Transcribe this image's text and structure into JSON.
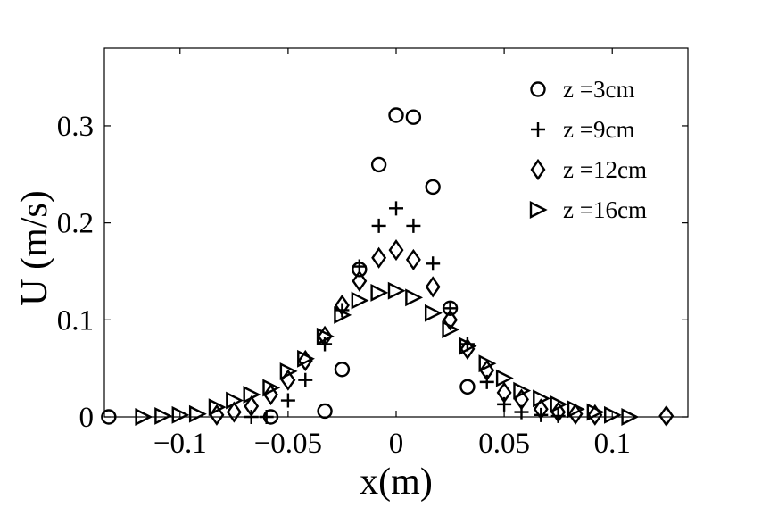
{
  "chart_data": {
    "type": "scatter",
    "title": "",
    "xlabel": "x(m)",
    "ylabel": "U (m/s)",
    "xlim": [
      -0.135,
      0.135
    ],
    "ylim": [
      0,
      0.38
    ],
    "grid": false,
    "legend_position": "top-right",
    "x_ticks": [
      {
        "value": -0.1,
        "label": "−0.1"
      },
      {
        "value": -0.05,
        "label": "−0.05"
      },
      {
        "value": 0,
        "label": "0"
      },
      {
        "value": 0.05,
        "label": "0.05"
      },
      {
        "value": 0.1,
        "label": "0.1"
      }
    ],
    "y_ticks": [
      {
        "value": 0,
        "label": "0"
      },
      {
        "value": 0.1,
        "label": "0.1"
      },
      {
        "value": 0.2,
        "label": "0.2"
      },
      {
        "value": 0.3,
        "label": "0.3"
      }
    ],
    "series": [
      {
        "name": "z =3cm",
        "marker": "circle",
        "points": [
          [
            -0.133,
            0.0
          ],
          [
            -0.058,
            0.0
          ],
          [
            -0.033,
            0.006
          ],
          [
            -0.025,
            0.049
          ],
          [
            -0.017,
            0.152
          ],
          [
            -0.008,
            0.26
          ],
          [
            0.0,
            0.311
          ],
          [
            0.008,
            0.309
          ],
          [
            0.017,
            0.237
          ],
          [
            0.025,
            0.112
          ],
          [
            0.033,
            0.031
          ]
        ]
      },
      {
        "name": "z =9cm",
        "marker": "plus",
        "points": [
          [
            -0.067,
            0.0
          ],
          [
            -0.06,
            0.0
          ],
          [
            -0.05,
            0.017
          ],
          [
            -0.042,
            0.038
          ],
          [
            -0.033,
            0.075
          ],
          [
            -0.025,
            0.11
          ],
          [
            -0.017,
            0.155
          ],
          [
            -0.008,
            0.197
          ],
          [
            0.0,
            0.215
          ],
          [
            0.008,
            0.197
          ],
          [
            0.017,
            0.158
          ],
          [
            0.025,
            0.112
          ],
          [
            0.033,
            0.075
          ],
          [
            0.042,
            0.036
          ],
          [
            0.05,
            0.013
          ],
          [
            0.058,
            0.005
          ],
          [
            0.067,
            0.002
          ],
          [
            0.075,
            0.001
          ]
        ]
      },
      {
        "name": "z =12cm",
        "marker": "diamond",
        "points": [
          [
            -0.083,
            0.002
          ],
          [
            -0.075,
            0.005
          ],
          [
            -0.067,
            0.011
          ],
          [
            -0.058,
            0.023
          ],
          [
            -0.05,
            0.038
          ],
          [
            -0.042,
            0.058
          ],
          [
            -0.033,
            0.083
          ],
          [
            -0.025,
            0.115
          ],
          [
            -0.017,
            0.14
          ],
          [
            -0.008,
            0.164
          ],
          [
            0.0,
            0.172
          ],
          [
            0.008,
            0.162
          ],
          [
            0.017,
            0.134
          ],
          [
            0.025,
            0.1
          ],
          [
            0.033,
            0.07
          ],
          [
            0.042,
            0.048
          ],
          [
            0.05,
            0.025
          ],
          [
            0.058,
            0.018
          ],
          [
            0.067,
            0.008
          ],
          [
            0.075,
            0.005
          ],
          [
            0.083,
            0.003
          ],
          [
            0.092,
            0.002
          ],
          [
            0.125,
            0.001
          ]
        ]
      },
      {
        "name": "z =16cm",
        "marker": "triangle-right",
        "points": [
          [
            -0.117,
            0.0
          ],
          [
            -0.108,
            0.001
          ],
          [
            -0.1,
            0.002
          ],
          [
            -0.092,
            0.003
          ],
          [
            -0.083,
            0.01
          ],
          [
            -0.075,
            0.017
          ],
          [
            -0.067,
            0.023
          ],
          [
            -0.058,
            0.03
          ],
          [
            -0.05,
            0.047
          ],
          [
            -0.042,
            0.06
          ],
          [
            -0.033,
            0.083
          ],
          [
            -0.025,
            0.105
          ],
          [
            -0.017,
            0.12
          ],
          [
            -0.008,
            0.128
          ],
          [
            0.0,
            0.13
          ],
          [
            0.008,
            0.123
          ],
          [
            0.017,
            0.107
          ],
          [
            0.025,
            0.09
          ],
          [
            0.033,
            0.073
          ],
          [
            0.042,
            0.055
          ],
          [
            0.05,
            0.04
          ],
          [
            0.058,
            0.027
          ],
          [
            0.067,
            0.019
          ],
          [
            0.075,
            0.013
          ],
          [
            0.083,
            0.008
          ],
          [
            0.092,
            0.005
          ],
          [
            0.1,
            0.002
          ],
          [
            0.108,
            0.0
          ]
        ]
      }
    ]
  }
}
